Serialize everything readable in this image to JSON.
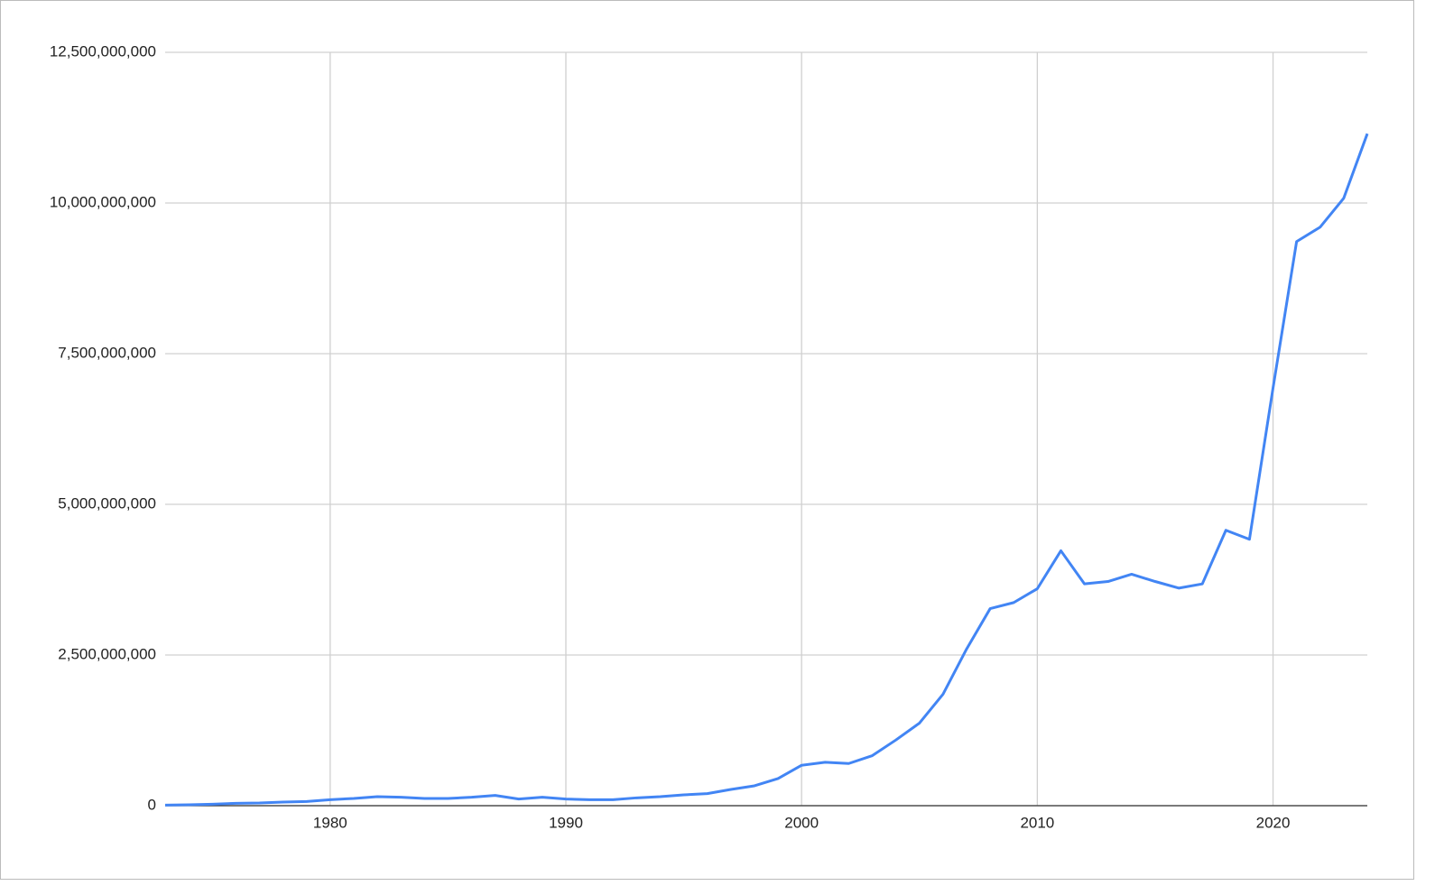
{
  "chart_data": {
    "type": "line",
    "x": [
      1973,
      1974,
      1975,
      1976,
      1977,
      1978,
      1979,
      1980,
      1981,
      1982,
      1983,
      1984,
      1985,
      1986,
      1987,
      1988,
      1989,
      1990,
      1991,
      1992,
      1993,
      1994,
      1995,
      1996,
      1997,
      1998,
      1999,
      2000,
      2001,
      2002,
      2003,
      2004,
      2005,
      2006,
      2007,
      2008,
      2009,
      2010,
      2011,
      2012,
      2013,
      2014,
      2015,
      2016,
      2017,
      2018,
      2019,
      2020,
      2021,
      2022,
      2023,
      2024
    ],
    "series": [
      {
        "color": "#4285f4",
        "values": [
          10000000,
          15000000,
          25000000,
          40000000,
          45000000,
          60000000,
          70000000,
          100000000,
          120000000,
          150000000,
          140000000,
          120000000,
          120000000,
          140000000,
          170000000,
          110000000,
          140000000,
          110000000,
          100000000,
          100000000,
          130000000,
          150000000,
          180000000,
          200000000,
          270000000,
          330000000,
          450000000,
          670000000,
          720000000,
          700000000,
          830000000,
          1090000000,
          1370000000,
          1850000000,
          2600000000,
          3270000000,
          3370000000,
          3600000000,
          4230000000,
          3680000000,
          3720000000,
          3840000000,
          3720000000,
          3610000000,
          3680000000,
          4570000000,
          4420000000,
          6930000000,
          9360000000,
          9600000000,
          10080000000,
          11150000000
        ]
      }
    ],
    "xlim": [
      1973,
      2024
    ],
    "xticks": [
      1980,
      1990,
      2000,
      2010,
      2020
    ],
    "ylim": [
      0,
      12500000000
    ],
    "yticks": [
      0,
      {
        "value": 2500000000,
        "label": "2,500,000,000"
      },
      {
        "value": 5000000000,
        "label": "5,000,000,000"
      },
      {
        "value": 7500000000,
        "label": "7,500,000,000"
      },
      {
        "value": 10000000000,
        "label": "10,000,000,000"
      },
      {
        "value": 12500000000,
        "label": "12,500,000,000"
      }
    ],
    "grid": true
  }
}
